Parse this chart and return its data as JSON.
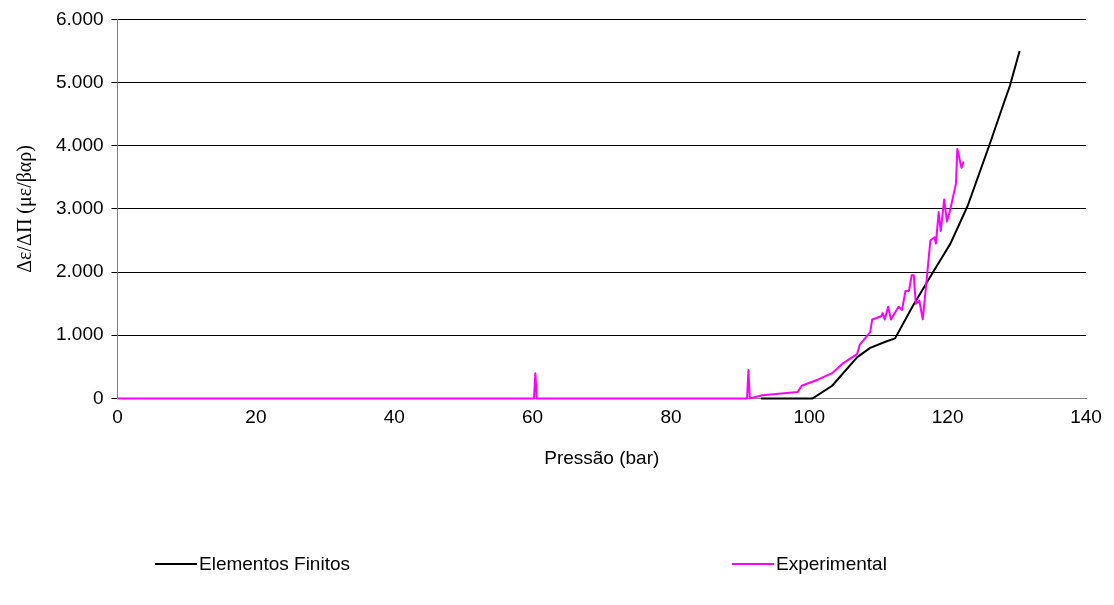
{
  "chart_data": {
    "type": "line",
    "xlabel": "Pressão (bar)",
    "ylabel": "Δε/ΔΠ (με/βαρ)",
    "xlim": [
      0,
      140
    ],
    "xticks": [
      0,
      20,
      40,
      60,
      80,
      100,
      120,
      140
    ],
    "ylim": [
      0,
      6000
    ],
    "yticks": [
      {
        "value": 0,
        "label": "0"
      },
      {
        "value": 1000,
        "label": "1.000"
      },
      {
        "value": 2000,
        "label": "2.000"
      },
      {
        "value": 3000,
        "label": "3.000"
      },
      {
        "value": 4000,
        "label": "4.000"
      },
      {
        "value": 5000,
        "label": "5.000"
      },
      {
        "value": 6000,
        "label": "6.000"
      }
    ],
    "grid": "y",
    "legend": "bottom",
    "marker": "none",
    "line_style": "solid",
    "series": [
      {
        "name": "Elementos Finitos",
        "color": "#000000",
        "x": [
          93,
          100.5,
          103.3,
          106.9,
          108.8,
          111.1,
          112.4,
          114.9,
          117.9,
          120.4,
          122.9,
          126.0,
          128.2,
          129.0,
          130.4
        ],
        "values": [
          0,
          0,
          200,
          650,
          800,
          900,
          950,
          1450,
          2000,
          2450,
          3050,
          4000,
          4700,
          4950,
          5500
        ]
      },
      {
        "name": "Experimental",
        "color": "#ff00ff",
        "x": [
          0,
          20,
          40,
          60.2,
          60.4,
          60.6,
          80,
          87,
          91.0,
          91.2,
          91.4,
          93.2,
          98.3,
          98.9,
          101.3,
          103.3,
          104.8,
          106.9,
          107.3,
          108.8,
          109.1,
          110.4,
          110.6,
          110.9,
          111.4,
          111.8,
          112.9,
          113.4,
          113.9,
          114.4,
          114.8,
          115.1,
          115.4,
          115.9,
          116.4,
          116.9,
          117.5,
          118.1,
          118.3,
          118.7,
          119.0,
          119.5,
          119.9,
          120.4,
          121.2,
          121.4,
          121.8,
          122.0,
          122.3
        ],
        "values": [
          0,
          0,
          0,
          0,
          400,
          0,
          0,
          0,
          0,
          450,
          0,
          50,
          100,
          200,
          300,
          400,
          550,
          700,
          850,
          1050,
          1250,
          1300,
          1350,
          1250,
          1450,
          1250,
          1450,
          1400,
          1700,
          1700,
          1950,
          1950,
          1500,
          1550,
          1250,
          1800,
          2500,
          2550,
          2450,
          2950,
          2650,
          3150,
          2800,
          3000,
          3400,
          3950,
          3750,
          3650,
          3750
        ]
      }
    ]
  }
}
